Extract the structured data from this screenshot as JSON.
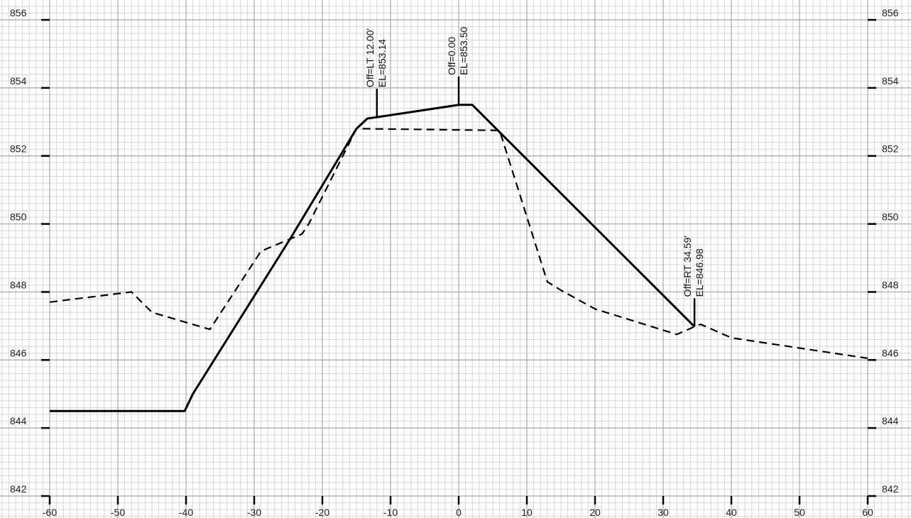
{
  "chart_data": {
    "type": "line",
    "xlim": [
      -60,
      60
    ],
    "ylim": [
      842,
      856
    ],
    "x_ticks": [
      -60,
      -50,
      -40,
      -30,
      -20,
      -10,
      0,
      10,
      20,
      30,
      40,
      50,
      60
    ],
    "y_ticks": [
      842,
      844,
      846,
      848,
      850,
      852,
      854,
      856
    ],
    "grid": true,
    "minor_grid": true,
    "series": [
      {
        "style": "solid",
        "color": "#000000",
        "points": [
          [
            -60,
            844.5
          ],
          [
            -40.2,
            844.5
          ],
          [
            -39,
            845.0
          ],
          [
            -24.6,
            849.6
          ],
          [
            -15,
            852.8
          ],
          [
            -13.4,
            853.1
          ],
          [
            -12,
            853.14
          ],
          [
            0,
            853.5
          ],
          [
            2,
            853.5
          ],
          [
            34.59,
            846.98
          ]
        ]
      },
      {
        "style": "dashed",
        "color": "#000000",
        "points": [
          [
            -60,
            847.7
          ],
          [
            -48,
            848.0
          ],
          [
            -47,
            847.8
          ],
          [
            -45,
            847.4
          ],
          [
            -36.5,
            846.9
          ],
          [
            -29,
            849.2
          ],
          [
            -23,
            849.7
          ],
          [
            -22,
            850.0
          ],
          [
            -15,
            852.8
          ],
          [
            -14,
            852.8
          ],
          [
            6,
            852.75
          ],
          [
            13,
            848.3
          ],
          [
            15,
            848.05
          ],
          [
            20,
            847.5
          ],
          [
            32,
            846.75
          ],
          [
            34.59,
            846.98
          ],
          [
            35.5,
            847.05
          ],
          [
            40,
            846.65
          ],
          [
            60,
            846.05
          ]
        ]
      }
    ],
    "annotations": [
      {
        "x": -12,
        "y": 853.14,
        "line1": "Off=LT 12.00'",
        "line2": "EL=853.14"
      },
      {
        "x": 0,
        "y": 853.5,
        "line1": "Off=0.00",
        "line2": "EL=853.50"
      },
      {
        "x": 34.59,
        "y": 846.98,
        "line1": "Off=RT 34.59'",
        "line2": "EL=846.98"
      }
    ]
  }
}
